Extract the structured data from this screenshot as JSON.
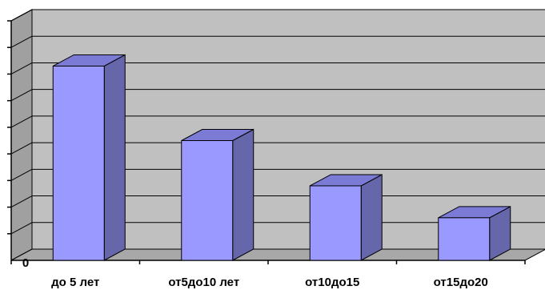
{
  "chart_data": {
    "type": "bar",
    "style": "3d",
    "categories": [
      "до 5 лет",
      "от5до10 лет",
      "от10до15",
      "от15до20"
    ],
    "values": [
      7.3,
      4.5,
      2.8,
      1.6
    ],
    "ylim": [
      0,
      9
    ],
    "y_tick_step": 1,
    "y_tick_labels_visible": [
      "0"
    ],
    "grid": true,
    "legend": "none",
    "colors": {
      "bar_front": "#9999ff",
      "bar_side": "#6666aa",
      "bar_top": "#7b7bd6",
      "wall": "#c0c0c0",
      "floor": "#a8a8a8",
      "grid": "#000000"
    }
  }
}
